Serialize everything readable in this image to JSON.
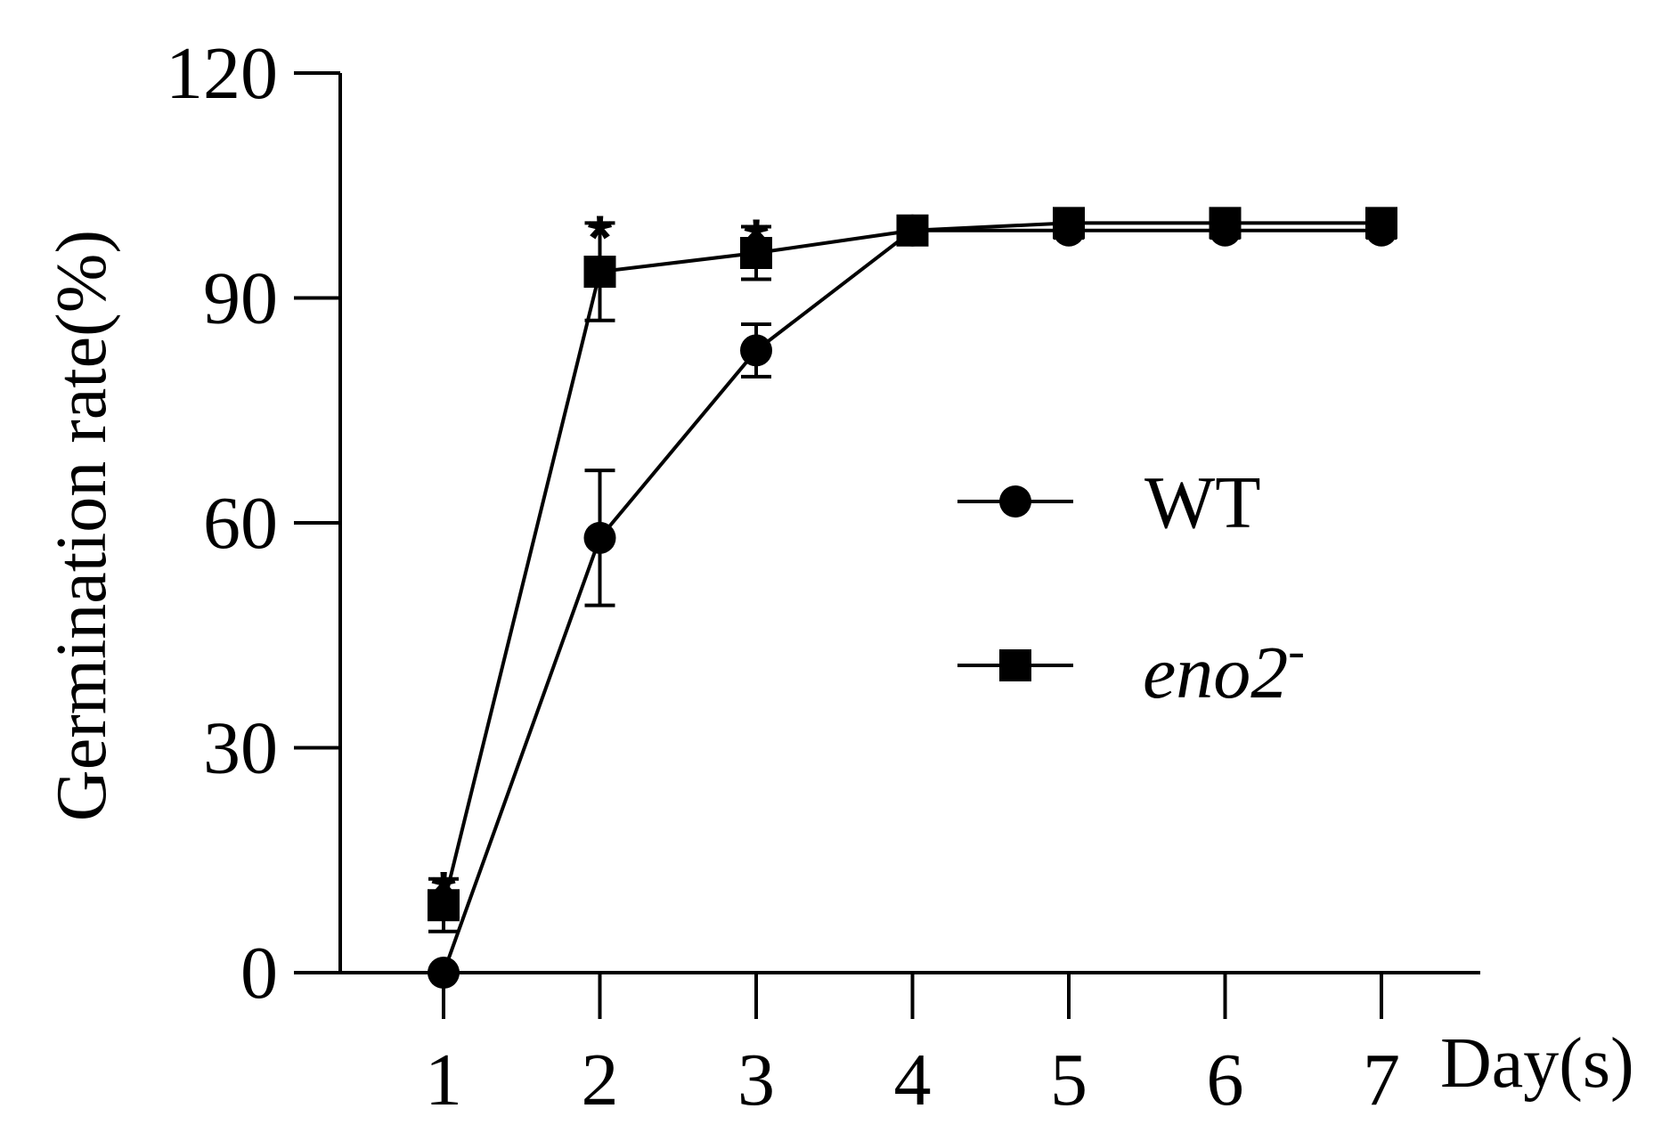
{
  "chart_data": {
    "type": "line",
    "title": "",
    "xlabel": "Day(s)",
    "ylabel": "Germination rate(%)",
    "x": [
      1,
      2,
      3,
      4,
      5,
      6,
      7
    ],
    "xlim": [
      0,
      8
    ],
    "ylim": [
      0,
      120
    ],
    "yticks": [
      "0",
      "30",
      "60",
      "90",
      "120"
    ],
    "xticks": [
      "1",
      "2",
      "3",
      "4",
      "5",
      "6",
      "7"
    ],
    "grid": false,
    "legend_position": "right",
    "series": [
      {
        "name": "WT",
        "marker": "circle",
        "values": [
          0,
          58,
          83,
          99,
          99,
          99,
          99
        ],
        "error": [
          0,
          9,
          3.5,
          0.8,
          1,
          1,
          1
        ]
      },
      {
        "name": "eno2",
        "name_superscript": "-",
        "marker": "square",
        "values": [
          9,
          93.5,
          96,
          99,
          100,
          100,
          100
        ],
        "error": [
          3.5,
          6.5,
          3.5,
          0.8,
          0.5,
          0.5,
          0.5
        ]
      }
    ],
    "annotations": [
      {
        "x": 1,
        "y": 12.5,
        "text": "*"
      },
      {
        "x": 2,
        "y": 100,
        "text": "*"
      },
      {
        "x": 3,
        "y": 99.5,
        "text": "*"
      }
    ],
    "colors": {
      "line": "#000000",
      "marker": "#000000"
    }
  }
}
